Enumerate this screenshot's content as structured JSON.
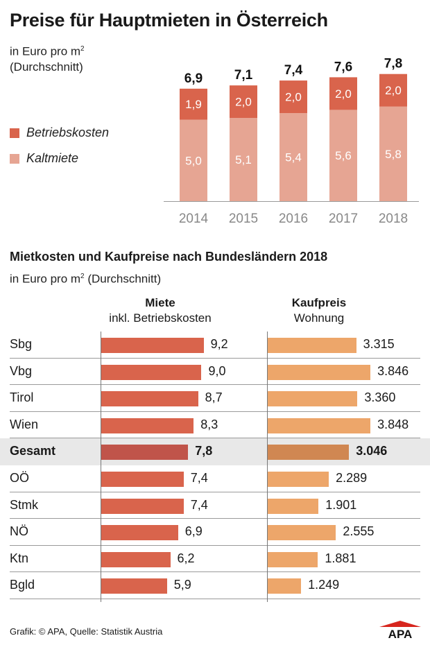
{
  "title": "Preise für Hauptmieten in Österreich",
  "subtitle_line1": "in Euro pro m",
  "subtitle_sup": "2",
  "subtitle_line2": "(Durchschnitt)",
  "legend": [
    {
      "label": "Betriebskosten",
      "color": "#d9644c"
    },
    {
      "label": "Kaltmiete",
      "color": "#e6a593"
    }
  ],
  "chart_data": [
    {
      "type": "bar",
      "stacked": true,
      "categories": [
        "2014",
        "2015",
        "2016",
        "2017",
        "2018"
      ],
      "series": [
        {
          "name": "Kaltmiete",
          "values": [
            "5,0",
            "5,1",
            "5,4",
            "5,6",
            "5,8"
          ],
          "color": "#e6a593"
        },
        {
          "name": "Betriebskosten",
          "values": [
            "1,9",
            "2,0",
            "2,0",
            "2,0",
            "2,0"
          ],
          "color": "#d9644c"
        }
      ],
      "totals": [
        "6,9",
        "7,1",
        "7,4",
        "7,6",
        "7,8"
      ],
      "title": "Preise für Hauptmieten in Österreich",
      "ylabel": "in Euro pro m2 (Durchschnitt)",
      "ylim": [
        0,
        7.8
      ]
    },
    {
      "type": "bar",
      "orientation": "horizontal",
      "title": "Mietkosten und Kaufpreise nach Bundesländern 2018",
      "subtitle": "in Euro pro m2 (Durchschnitt)",
      "categories": [
        "Sbg",
        "Vbg",
        "Tirol",
        "Wien",
        "Gesamt",
        "OÖ",
        "Stmk",
        "NÖ",
        "Ktn",
        "Bgld"
      ],
      "highlight": "Gesamt",
      "series": [
        {
          "name": "Miete inkl. Betriebskosten",
          "labels": [
            "9,2",
            "9,0",
            "8,7",
            "8,3",
            "7,8",
            "7,4",
            "7,4",
            "6,9",
            "6,2",
            "5,9"
          ],
          "color": "#d9644c",
          "highlight_color": "#c0544a"
        },
        {
          "name": "Kaufpreis Wohnung",
          "labels": [
            "3.315",
            "3.846",
            "3.360",
            "3.848",
            "3.046",
            "2.289",
            "1.901",
            "2.555",
            "1.881",
            "1.249"
          ],
          "color": "#eda66a",
          "highlight_color": "#d08752"
        }
      ]
    }
  ],
  "section2": {
    "title": "Mietkosten und Kaufpreise nach Bundesländern 2018",
    "subtitle_pre": "in Euro pro m",
    "subtitle_sup": "2",
    "subtitle_post": " (Durchschnitt)",
    "col1_header": "Miete",
    "col1_sub": "inkl. Betriebskosten",
    "col2_header": "Kaufpreis",
    "col2_sub": "Wohnung"
  },
  "footer": "Grafik: © APA, Quelle: Statistik Austria",
  "logo_text": "APA"
}
